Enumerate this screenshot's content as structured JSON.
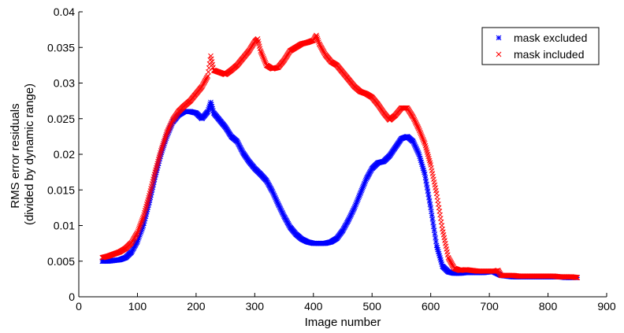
{
  "chart_data": {
    "type": "scatter",
    "title": "",
    "xlabel": "Image number",
    "ylabel_lines": [
      "RMS error residuals",
      "(divided by dynamic range)"
    ],
    "xlim": [
      0,
      900
    ],
    "ylim": [
      0,
      0.04
    ],
    "x_ticks": [
      0,
      100,
      200,
      300,
      400,
      500,
      600,
      700,
      800,
      900
    ],
    "y_ticks": [
      0,
      0.005,
      0.01,
      0.015,
      0.02,
      0.025,
      0.03,
      0.035,
      0.04
    ],
    "x_tick_labels": [
      "0",
      "100",
      "200",
      "300",
      "400",
      "500",
      "600",
      "700",
      "800",
      "900"
    ],
    "y_tick_labels": [
      "0",
      "0.005",
      "0.01",
      "0.015",
      "0.02",
      "0.025",
      "0.03",
      "0.035",
      "0.04"
    ],
    "grid": false,
    "legend_position": "top-right",
    "series": [
      {
        "name": "mask excluded",
        "marker": "asterisk",
        "color": "#0000ff",
        "x": [
          40,
          50,
          60,
          70,
          80,
          90,
          100,
          110,
          120,
          130,
          140,
          150,
          160,
          170,
          180,
          190,
          200,
          210,
          220,
          225,
          230,
          240,
          250,
          260,
          270,
          280,
          290,
          300,
          310,
          320,
          330,
          340,
          350,
          360,
          370,
          380,
          390,
          400,
          410,
          420,
          430,
          440,
          450,
          460,
          470,
          480,
          490,
          500,
          510,
          520,
          530,
          540,
          550,
          560,
          570,
          580,
          590,
          600,
          610,
          620,
          630,
          640,
          650,
          660,
          670,
          680,
          690,
          700,
          705,
          710,
          720,
          730,
          740,
          750,
          760,
          770,
          780,
          790,
          800,
          810,
          820,
          830,
          840,
          850
        ],
        "y": [
          0.005,
          0.005,
          0.0051,
          0.0052,
          0.0055,
          0.0063,
          0.0078,
          0.01,
          0.0132,
          0.0168,
          0.02,
          0.0225,
          0.0245,
          0.0255,
          0.026,
          0.026,
          0.0258,
          0.025,
          0.026,
          0.0273,
          0.0258,
          0.0248,
          0.0238,
          0.0225,
          0.0218,
          0.0202,
          0.019,
          0.018,
          0.0172,
          0.0163,
          0.0148,
          0.013,
          0.0113,
          0.0098,
          0.0088,
          0.0081,
          0.0077,
          0.0075,
          0.0075,
          0.0075,
          0.0077,
          0.0082,
          0.0093,
          0.0108,
          0.0125,
          0.0145,
          0.0165,
          0.018,
          0.0188,
          0.019,
          0.0198,
          0.021,
          0.0222,
          0.0225,
          0.0218,
          0.02,
          0.0172,
          0.0125,
          0.0072,
          0.0043,
          0.0035,
          0.0033,
          0.0033,
          0.0034,
          0.0034,
          0.0034,
          0.0034,
          0.0035,
          0.0036,
          0.0034,
          0.003,
          0.0029,
          0.0028,
          0.0028,
          0.0028,
          0.0028,
          0.0028,
          0.0028,
          0.0028,
          0.0028,
          0.0028,
          0.0027,
          0.0027,
          0.0027
        ]
      },
      {
        "name": "mask included",
        "marker": "x",
        "color": "#ff0000",
        "x": [
          40,
          50,
          60,
          70,
          80,
          90,
          100,
          110,
          120,
          130,
          140,
          150,
          160,
          170,
          180,
          190,
          200,
          210,
          220,
          225,
          230,
          240,
          250,
          260,
          270,
          280,
          290,
          300,
          305,
          310,
          320,
          330,
          340,
          350,
          360,
          370,
          380,
          390,
          400,
          405,
          410,
          420,
          430,
          440,
          450,
          460,
          470,
          480,
          490,
          500,
          510,
          520,
          530,
          540,
          550,
          560,
          570,
          580,
          590,
          600,
          610,
          620,
          630,
          640,
          650,
          660,
          670,
          680,
          690,
          700,
          710,
          715,
          720,
          730,
          740,
          750,
          760,
          770,
          780,
          790,
          800,
          810,
          820,
          830,
          840,
          850
        ],
        "y": [
          0.0055,
          0.0057,
          0.006,
          0.0063,
          0.0068,
          0.0076,
          0.009,
          0.0112,
          0.0142,
          0.0175,
          0.0205,
          0.023,
          0.0248,
          0.026,
          0.0268,
          0.0275,
          0.0285,
          0.0295,
          0.031,
          0.0338,
          0.0318,
          0.0315,
          0.0312,
          0.0318,
          0.0325,
          0.0335,
          0.0345,
          0.0358,
          0.0362,
          0.0345,
          0.0325,
          0.032,
          0.0322,
          0.0332,
          0.0345,
          0.035,
          0.0355,
          0.0357,
          0.036,
          0.0367,
          0.0355,
          0.034,
          0.033,
          0.0325,
          0.0315,
          0.0305,
          0.0295,
          0.0288,
          0.0285,
          0.028,
          0.027,
          0.0258,
          0.0248,
          0.0255,
          0.0265,
          0.0265,
          0.0252,
          0.0235,
          0.0215,
          0.0185,
          0.0145,
          0.0095,
          0.0055,
          0.004,
          0.0037,
          0.0038,
          0.0037,
          0.0036,
          0.0036,
          0.0036,
          0.0036,
          0.0037,
          0.003,
          0.003,
          0.003,
          0.0029,
          0.0029,
          0.0029,
          0.0029,
          0.0029,
          0.0029,
          0.0029,
          0.0028,
          0.0028,
          0.0028,
          0.0027
        ]
      }
    ]
  }
}
